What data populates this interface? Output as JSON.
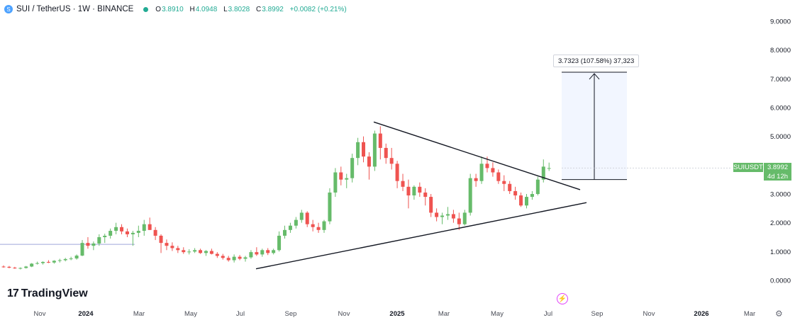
{
  "header": {
    "symbol_title": "SUI / TetherUS · 1W · BINANCE",
    "ohlc": [
      {
        "k": "O",
        "v": "3.8910"
      },
      {
        "k": "H",
        "v": "4.0948"
      },
      {
        "k": "L",
        "v": "3.8028"
      },
      {
        "k": "C",
        "v": "3.8992"
      },
      {
        "k": "",
        "v": "+0.0082 (+0.21%)"
      }
    ]
  },
  "logo": {
    "text": "TradingView"
  },
  "price_tag": {
    "symbol": "SUIUSDT",
    "price": "3.8992",
    "countdown": "4d 12h"
  },
  "measure": {
    "label": "3.7323 (107.58%) 37,323"
  },
  "colors": {
    "up": "#66bb6a",
    "down": "#ef5350",
    "accent": "#2962ff"
  },
  "chart_data": {
    "type": "candlestick",
    "interval": "1W",
    "ylim": [
      0,
      9
    ],
    "y_ticks": [
      "9.0000",
      "8.0000",
      "7.0000",
      "6.0000",
      "5.0000",
      "4.0000",
      "3.0000",
      "2.0000",
      "1.0000",
      "0.0000"
    ],
    "x_ticks": [
      "Nov",
      "2024",
      "Mar",
      "May",
      "Jul",
      "Sep",
      "Nov",
      "2025",
      "Mar",
      "May",
      "Jul",
      "Sep",
      "Nov",
      "2026",
      "Mar"
    ],
    "candles": [
      [
        0.48,
        0.52,
        0.44,
        0.47
      ],
      [
        0.47,
        0.5,
        0.42,
        0.44
      ],
      [
        0.44,
        0.47,
        0.4,
        0.42
      ],
      [
        0.42,
        0.45,
        0.38,
        0.43
      ],
      [
        0.43,
        0.5,
        0.41,
        0.48
      ],
      [
        0.48,
        0.6,
        0.46,
        0.58
      ],
      [
        0.58,
        0.65,
        0.55,
        0.6
      ],
      [
        0.6,
        0.66,
        0.55,
        0.64
      ],
      [
        0.64,
        0.7,
        0.6,
        0.62
      ],
      [
        0.62,
        0.7,
        0.58,
        0.68
      ],
      [
        0.68,
        0.75,
        0.62,
        0.7
      ],
      [
        0.7,
        0.78,
        0.66,
        0.74
      ],
      [
        0.74,
        0.82,
        0.7,
        0.76
      ],
      [
        0.76,
        0.9,
        0.72,
        0.86
      ],
      [
        0.86,
        1.4,
        0.84,
        1.3
      ],
      [
        1.3,
        1.5,
        1.1,
        1.2
      ],
      [
        1.2,
        1.35,
        1.05,
        1.28
      ],
      [
        1.28,
        1.6,
        1.2,
        1.5
      ],
      [
        1.5,
        1.62,
        1.3,
        1.55
      ],
      [
        1.55,
        1.8,
        1.45,
        1.72
      ],
      [
        1.72,
        2.0,
        1.6,
        1.85
      ],
      [
        1.85,
        1.95,
        1.6,
        1.7
      ],
      [
        1.7,
        1.8,
        1.5,
        1.6
      ],
      [
        1.6,
        1.72,
        1.2,
        1.65
      ],
      [
        1.65,
        1.9,
        1.5,
        1.72
      ],
      [
        1.72,
        2.1,
        1.55,
        1.95
      ],
      [
        1.95,
        2.18,
        1.75,
        1.75
      ],
      [
        1.75,
        1.85,
        1.4,
        1.55
      ],
      [
        1.55,
        1.6,
        0.95,
        1.3
      ],
      [
        1.3,
        1.42,
        1.05,
        1.2
      ],
      [
        1.2,
        1.32,
        1.02,
        1.12
      ],
      [
        1.12,
        1.2,
        0.95,
        1.05
      ],
      [
        1.05,
        1.15,
        0.92,
        0.98
      ],
      [
        0.98,
        1.08,
        0.9,
        1.0
      ],
      [
        1.0,
        1.12,
        0.95,
        1.05
      ],
      [
        1.05,
        1.1,
        0.92,
        0.95
      ],
      [
        0.95,
        1.05,
        0.85,
        1.02
      ],
      [
        1.02,
        1.1,
        0.9,
        0.92
      ],
      [
        0.92,
        0.98,
        0.78,
        0.85
      ],
      [
        0.85,
        0.92,
        0.72,
        0.78
      ],
      [
        0.78,
        0.85,
        0.65,
        0.7
      ],
      [
        0.7,
        0.9,
        0.62,
        0.82
      ],
      [
        0.82,
        0.88,
        0.7,
        0.75
      ],
      [
        0.75,
        0.85,
        0.65,
        0.8
      ],
      [
        0.8,
        1.05,
        0.75,
        0.98
      ],
      [
        0.98,
        1.15,
        0.85,
        0.9
      ],
      [
        0.9,
        1.1,
        0.82,
        1.05
      ],
      [
        1.05,
        1.12,
        0.88,
        0.95
      ],
      [
        0.95,
        1.1,
        0.9,
        1.05
      ],
      [
        1.05,
        1.7,
        1.0,
        1.55
      ],
      [
        1.55,
        1.9,
        1.45,
        1.75
      ],
      [
        1.75,
        2.0,
        1.65,
        1.9
      ],
      [
        1.9,
        2.2,
        1.8,
        2.1
      ],
      [
        2.1,
        2.45,
        2.0,
        2.35
      ],
      [
        2.35,
        2.4,
        1.85,
        1.95
      ],
      [
        1.95,
        2.1,
        1.7,
        1.85
      ],
      [
        1.85,
        2.0,
        1.65,
        1.75
      ],
      [
        1.75,
        2.1,
        1.65,
        2.05
      ],
      [
        2.05,
        3.2,
        1.95,
        3.05
      ],
      [
        3.05,
        3.9,
        2.9,
        3.75
      ],
      [
        3.75,
        3.95,
        3.3,
        3.5
      ],
      [
        3.5,
        3.7,
        3.2,
        3.55
      ],
      [
        3.55,
        4.4,
        3.4,
        4.25
      ],
      [
        4.25,
        4.95,
        4.0,
        4.8
      ],
      [
        4.8,
        5.0,
        4.1,
        4.3
      ],
      [
        4.3,
        4.45,
        3.5,
        3.95
      ],
      [
        3.95,
        5.2,
        3.8,
        5.1
      ],
      [
        5.1,
        5.35,
        4.2,
        4.6
      ],
      [
        4.6,
        4.75,
        4.05,
        4.25
      ],
      [
        4.25,
        4.6,
        3.85,
        4.05
      ],
      [
        4.05,
        4.15,
        3.2,
        3.45
      ],
      [
        3.45,
        3.7,
        3.1,
        3.25
      ],
      [
        3.25,
        3.5,
        2.5,
        2.95
      ],
      [
        2.95,
        3.3,
        2.8,
        3.25
      ],
      [
        3.25,
        3.4,
        2.9,
        3.05
      ],
      [
        3.05,
        3.2,
        2.6,
        2.9
      ],
      [
        2.9,
        3.0,
        2.2,
        2.35
      ],
      [
        2.35,
        2.5,
        2.05,
        2.2
      ],
      [
        2.2,
        2.35,
        1.95,
        2.25
      ],
      [
        2.25,
        2.55,
        2.1,
        2.3
      ],
      [
        2.3,
        2.45,
        2.0,
        2.15
      ],
      [
        2.15,
        2.35,
        1.75,
        1.95
      ],
      [
        1.95,
        2.45,
        1.9,
        2.35
      ],
      [
        2.35,
        3.7,
        2.25,
        3.55
      ],
      [
        3.55,
        3.7,
        3.25,
        3.45
      ],
      [
        3.45,
        4.3,
        3.35,
        4.05
      ],
      [
        4.05,
        4.3,
        3.75,
        3.9
      ],
      [
        3.9,
        4.1,
        3.6,
        3.75
      ],
      [
        3.75,
        3.85,
        3.35,
        3.45
      ],
      [
        3.45,
        3.65,
        3.1,
        3.35
      ],
      [
        3.35,
        3.45,
        3.0,
        3.1
      ],
      [
        3.1,
        3.25,
        2.8,
        2.95
      ],
      [
        2.95,
        3.05,
        2.55,
        2.6
      ],
      [
        2.6,
        3.0,
        2.5,
        2.9
      ],
      [
        2.9,
        3.1,
        2.8,
        3.0
      ],
      [
        3.0,
        3.6,
        2.95,
        3.5
      ],
      [
        3.5,
        4.2,
        3.4,
        3.95
      ],
      [
        3.89,
        4.09,
        3.8,
        3.9
      ]
    ],
    "lines": [
      {
        "name": "resistance",
        "from": [
          "2024-12",
          5.5
        ],
        "to": [
          "2025-08",
          3.15
        ]
      },
      {
        "name": "support",
        "from": [
          "2024-08",
          0.4
        ],
        "to": [
          "2025-09",
          2.7
        ]
      },
      {
        "name": "target",
        "from": 3.5,
        "to": 7.23
      }
    ],
    "last_price": 3.8992
  }
}
